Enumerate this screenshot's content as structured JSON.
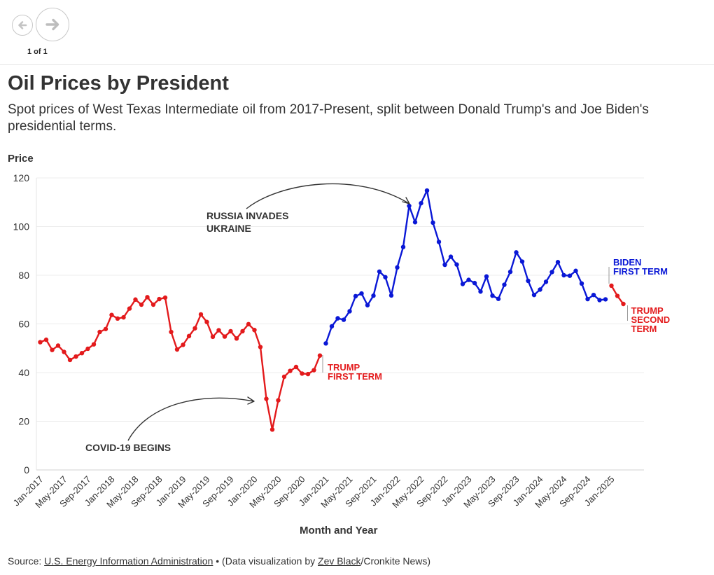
{
  "navigation": {
    "prev_icon": "arrow-left-icon",
    "next_icon": "arrow-right-icon",
    "pager_text": "1 of 1"
  },
  "header": {
    "title": "Oil Prices by President",
    "subtitle": "Spot prices of West Texas Intermediate oil from 2017-Present, split between Donald Trump's and Joe Biden's presidential terms."
  },
  "source": {
    "prefix": "Source: ",
    "source_link": "U.S. Energy Information Administration",
    "middle": " • (Data visualization by ",
    "author_link": "Zev Black",
    "suffix": "/Cronkite News)"
  },
  "chart_data": {
    "type": "line",
    "title": "Oil Prices by President",
    "xlabel": "Month and Year",
    "ylabel": "Price",
    "ylim": [
      0,
      120
    ],
    "yticks": [
      0,
      20,
      40,
      60,
      80,
      100,
      120
    ],
    "xticks": [
      {
        "label": "Jan-2017",
        "index": 0
      },
      {
        "label": "May-2017",
        "index": 4
      },
      {
        "label": "Sep-2017",
        "index": 8
      },
      {
        "label": "Jan-2018",
        "index": 12
      },
      {
        "label": "May-2018",
        "index": 16
      },
      {
        "label": "Sep-2018",
        "index": 20
      },
      {
        "label": "Jan-2019",
        "index": 24
      },
      {
        "label": "May-2019",
        "index": 28
      },
      {
        "label": "Sep-2019",
        "index": 32
      },
      {
        "label": "Jan-2020",
        "index": 36
      },
      {
        "label": "May-2020",
        "index": 40
      },
      {
        "label": "Sep-2020",
        "index": 44
      },
      {
        "label": "Jan-2021",
        "index": 48
      },
      {
        "label": "May-2021",
        "index": 52
      },
      {
        "label": "Sep-2021",
        "index": 56
      },
      {
        "label": "Jan-2022",
        "index": 60
      },
      {
        "label": "May-2022",
        "index": 64
      },
      {
        "label": "Sep-2022",
        "index": 68
      },
      {
        "label": "Jan-2023",
        "index": 72
      },
      {
        "label": "May-2023",
        "index": 76
      },
      {
        "label": "Sep-2023",
        "index": 80
      },
      {
        "label": "Jan-2024",
        "index": 84
      },
      {
        "label": "May-2024",
        "index": 88
      },
      {
        "label": "Sep-2024",
        "index": 92
      },
      {
        "label": "Jan-2025",
        "index": 96
      }
    ],
    "total_months": 100,
    "series": [
      {
        "name": "Trump First Term",
        "label_lines": [
          "TRUMP",
          "FIRST TERM"
        ],
        "color": "#e31a1c",
        "start_index": 0,
        "values": [
          52.5,
          53.5,
          49.3,
          51.1,
          48.5,
          45.2,
          46.6,
          48.0,
          49.8,
          51.6,
          56.7,
          57.9,
          63.7,
          62.2,
          62.7,
          66.3,
          70.0,
          67.9,
          71.0,
          67.9,
          70.2,
          70.8,
          56.7,
          49.5,
          51.4,
          55.0,
          58.2,
          63.9,
          60.8,
          54.7,
          57.4,
          54.8,
          57.0,
          54.0,
          57.0,
          59.9,
          57.5,
          50.5,
          29.2,
          16.6,
          28.6,
          38.3,
          40.7,
          42.3,
          39.6,
          39.4,
          41.0,
          47.0
        ]
      },
      {
        "name": "Biden First Term",
        "label_lines": [
          "BIDEN",
          "FIRST TERM"
        ],
        "color": "#0a18d6",
        "start_index": 48,
        "values": [
          52.0,
          59.0,
          62.3,
          61.7,
          65.2,
          71.4,
          72.5,
          67.7,
          71.6,
          81.5,
          79.2,
          71.7,
          83.2,
          91.6,
          108.5,
          101.8,
          109.6,
          114.8,
          101.6,
          93.7,
          84.3,
          87.6,
          84.4,
          76.4,
          78.1,
          76.8,
          73.3,
          79.5,
          71.6,
          70.3,
          76.1,
          81.4,
          89.4,
          85.6,
          77.7,
          71.9,
          74.1,
          77.3,
          81.3,
          85.4,
          80.0,
          79.8,
          81.8,
          76.6,
          70.2,
          71.9,
          69.8,
          70.1
        ]
      },
      {
        "name": "Trump Second Term",
        "label_lines": [
          "TRUMP",
          "SECOND",
          "TERM"
        ],
        "color": "#e31a1c",
        "start_index": 96,
        "values": [
          75.7,
          71.5,
          68.2
        ]
      }
    ],
    "annotations": [
      {
        "text_lines": [
          "RUSSIA INVADES",
          "UKRAINE"
        ],
        "target_index": 62,
        "target_value": 109
      },
      {
        "text_lines": [
          "COVID-19 BEGINS"
        ],
        "target_index": 38,
        "target_value": 28
      }
    ]
  }
}
